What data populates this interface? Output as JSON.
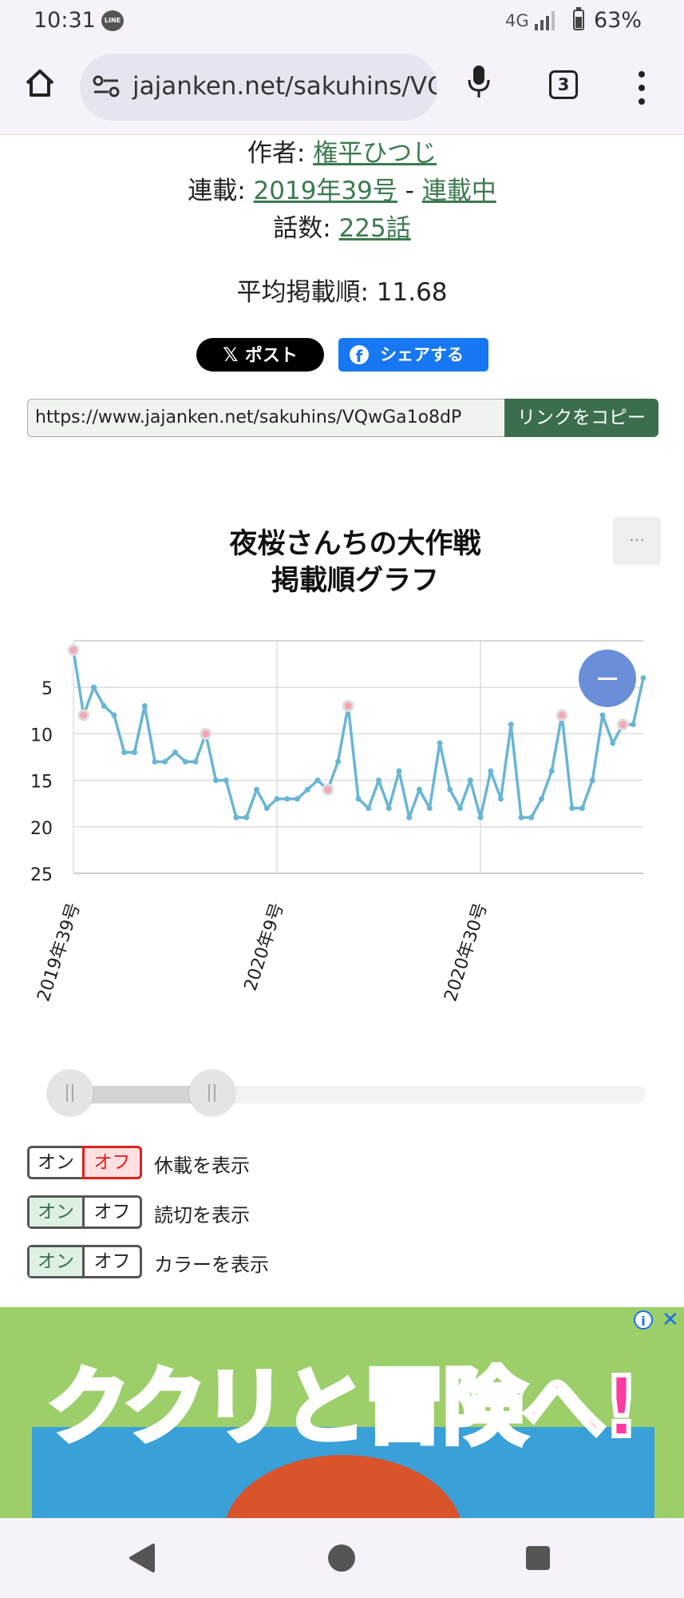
{
  "status_bar": {
    "time": "10:31",
    "line_badge": "LINE",
    "network": "4G",
    "battery": "63%"
  },
  "browser": {
    "url": "jajanken.net/sakuhins/VQwGa1o8dP",
    "tab_count": "3"
  },
  "info": {
    "author_label": "作者: ",
    "author": "権平ひつじ",
    "serial_label": "連載: ",
    "start_issue": "2019年39号",
    "serial_sep": " - ",
    "status": "連載中",
    "episodes_label": "話数: ",
    "episodes": "225話",
    "avg_label": "平均掲載順: ",
    "avg_value": "11.68"
  },
  "share": {
    "x_label": "ポスト",
    "fb_label": "シェアする"
  },
  "copy_link": {
    "url": "https://www.jajanken.net/sakuhins/VQwGa1o8dP",
    "button": "リンクをコピー"
  },
  "chart_data": {
    "type": "line",
    "title": [
      "夜桜さんちの大作戦",
      "掲載順グラフ"
    ],
    "y_ticks": [
      "5",
      "10",
      "15",
      "20",
      "25"
    ],
    "ylim": [
      25,
      0
    ],
    "y_reversed": true,
    "x_tick_labels": [
      "2019年39号",
      "2020年9号",
      "2020年30号"
    ],
    "grid": true,
    "series": [
      {
        "color": "#6ab5d4",
        "values": [
          1,
          8,
          5,
          7,
          8,
          12,
          12,
          7,
          13,
          13,
          12,
          13,
          13,
          10,
          15,
          15,
          19,
          19,
          16,
          18,
          17,
          17,
          17,
          16,
          15,
          16,
          13,
          7,
          17,
          18,
          15,
          18,
          14,
          19,
          16,
          18,
          11,
          16,
          18,
          15,
          19,
          14,
          17,
          9,
          19,
          19,
          17,
          14,
          8,
          18,
          18,
          15,
          8,
          11,
          9,
          9,
          4
        ],
        "highlighted_points": [
          0,
          1,
          13,
          25,
          27,
          48,
          54
        ]
      }
    ]
  },
  "toggles": [
    {
      "on": "オン",
      "off": "オフ",
      "state": "off",
      "label": "休載を表示"
    },
    {
      "on": "オン",
      "off": "オフ",
      "state": "on",
      "label": "読切を表示"
    },
    {
      "on": "オン",
      "off": "オフ",
      "state": "on",
      "label": "カラーを表示"
    }
  ],
  "ad": {
    "text": "ククリと冒険へ!",
    "info": "i",
    "close": "✕"
  },
  "colors": {
    "accent_green": "#3b6e4c",
    "link_green": "#3d7a4f",
    "line": "#6ab5d4",
    "zoom": "#6a8fd8"
  }
}
